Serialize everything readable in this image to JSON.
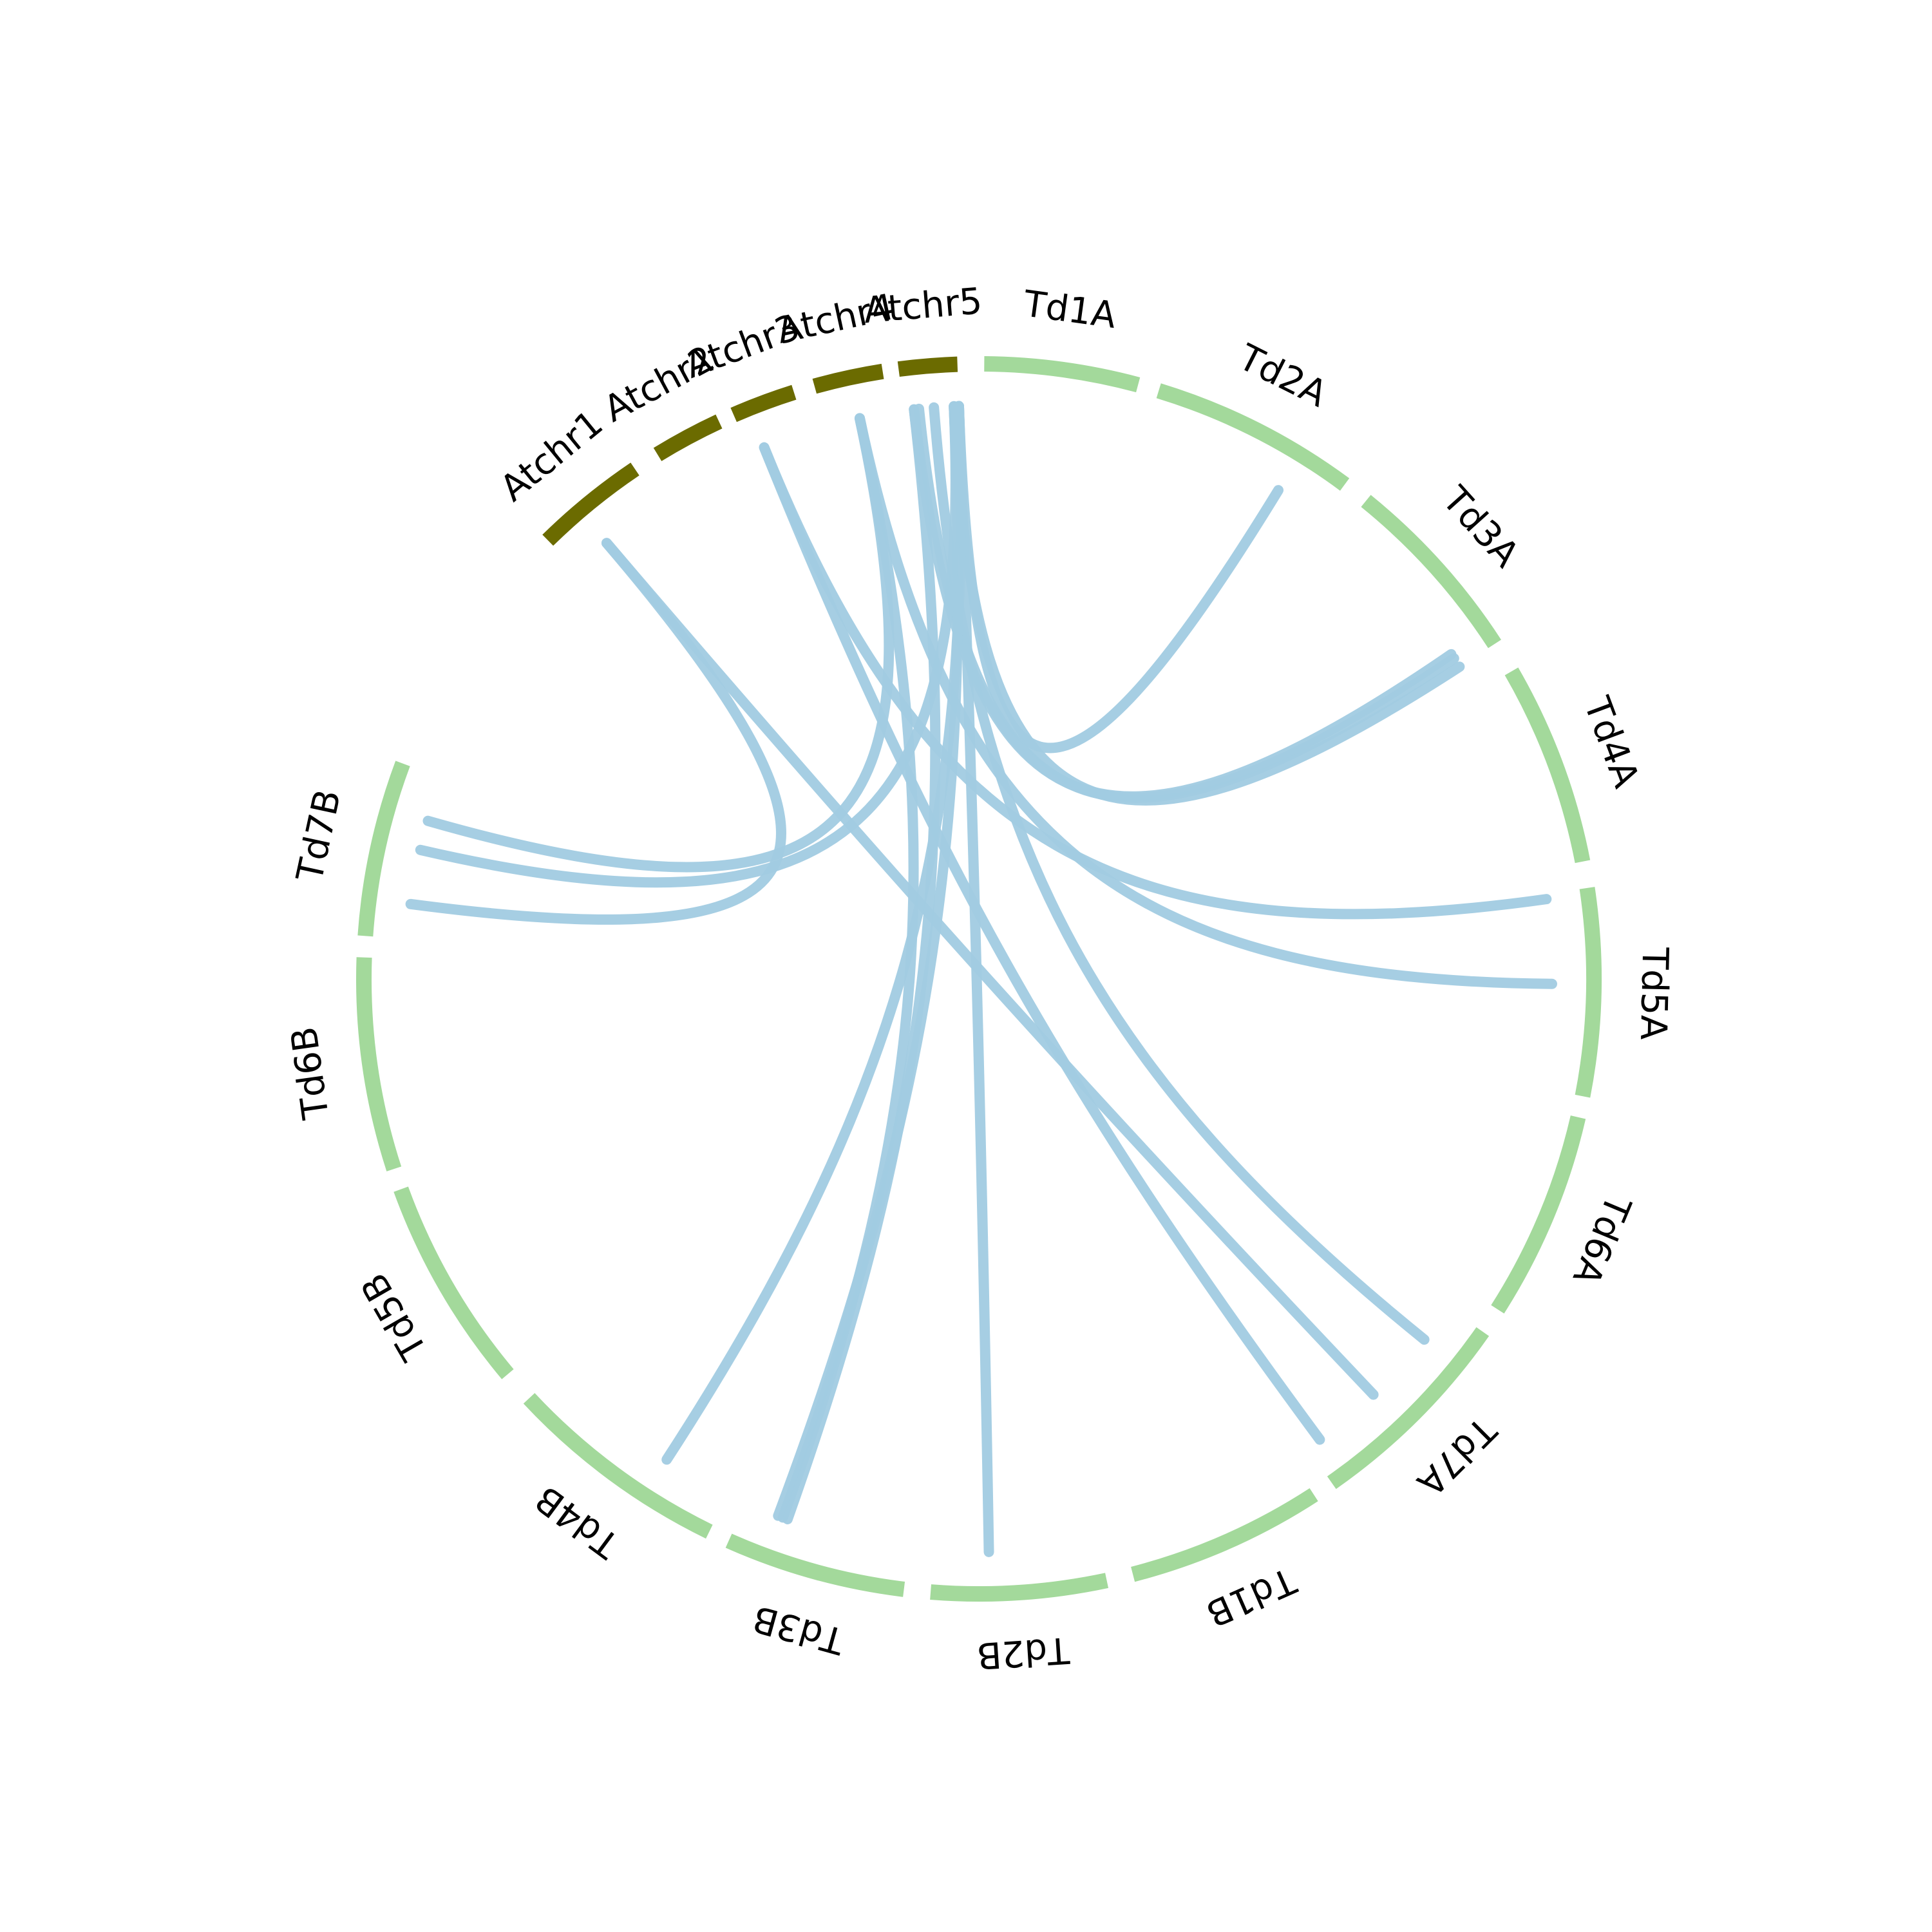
{
  "colors": {
    "arabidopsis": "#6b6b00",
    "wheat": "#a3d99b",
    "link": "#a1cbe2",
    "background": "#ffffff",
    "text": "#000000"
  },
  "chromosomes": [
    {
      "id": "Atchr1",
      "label": "Atchr1",
      "group": "arabidopsis"
    },
    {
      "id": "Atchr2",
      "label": "Atchr2",
      "group": "arabidopsis"
    },
    {
      "id": "Atchr3",
      "label": "Atchr3",
      "group": "arabidopsis"
    },
    {
      "id": "Atchr4",
      "label": "Atchr4",
      "group": "arabidopsis"
    },
    {
      "id": "Atchr5",
      "label": "Atchr5",
      "group": "arabidopsis"
    },
    {
      "id": "Td1A",
      "label": "Td1A",
      "group": "wheat"
    },
    {
      "id": "Td2A",
      "label": "Td2A",
      "group": "wheat"
    },
    {
      "id": "Td3A",
      "label": "Td3A",
      "group": "wheat"
    },
    {
      "id": "Td4A",
      "label": "Td4A",
      "group": "wheat"
    },
    {
      "id": "Td5A",
      "label": "Td5A",
      "group": "wheat"
    },
    {
      "id": "Td6A",
      "label": "Td6A",
      "group": "wheat"
    },
    {
      "id": "Td7A",
      "label": "Td7A",
      "group": "wheat"
    },
    {
      "id": "Td1B",
      "label": "Td1B",
      "group": "wheat"
    },
    {
      "id": "Td2B",
      "label": "Td2B",
      "group": "wheat"
    },
    {
      "id": "Td3B",
      "label": "Td3B",
      "group": "wheat"
    },
    {
      "id": "Td4B",
      "label": "Td4B",
      "group": "wheat"
    },
    {
      "id": "Td5B",
      "label": "Td5B",
      "group": "wheat"
    },
    {
      "id": "Td6B",
      "label": "Td6B",
      "group": "wheat"
    },
    {
      "id": "Td7B",
      "label": "Td7B",
      "group": "wheat"
    }
  ],
  "links": [
    {
      "from": "Atchr1",
      "to": "Td7A"
    },
    {
      "from": "Atchr1",
      "to": "Td7B"
    },
    {
      "from": "Atchr3",
      "to": "Td1B"
    },
    {
      "from": "Atchr3",
      "to": "Td4A"
    },
    {
      "from": "Atchr4",
      "to": "Td3B"
    },
    {
      "from": "Atchr4",
      "to": "Td7B"
    },
    {
      "from": "Atchr4",
      "to": "Td5A"
    },
    {
      "from": "Atchr5",
      "to": "Td3A"
    },
    {
      "from": "Atchr5",
      "to": "Td3A"
    },
    {
      "from": "Atchr5",
      "to": "Td6A"
    },
    {
      "from": "Atchr5",
      "to": "Td3B"
    },
    {
      "from": "Atchr5",
      "to": "Td3A"
    },
    {
      "from": "Atchr5",
      "to": "Td2A"
    },
    {
      "from": "Atchr5",
      "to": "Td2B"
    },
    {
      "from": "Atchr5",
      "to": "Td3B"
    },
    {
      "from": "Atchr5",
      "to": "Td4B"
    },
    {
      "from": "Atchr5",
      "to": "Td7B"
    }
  ]
}
